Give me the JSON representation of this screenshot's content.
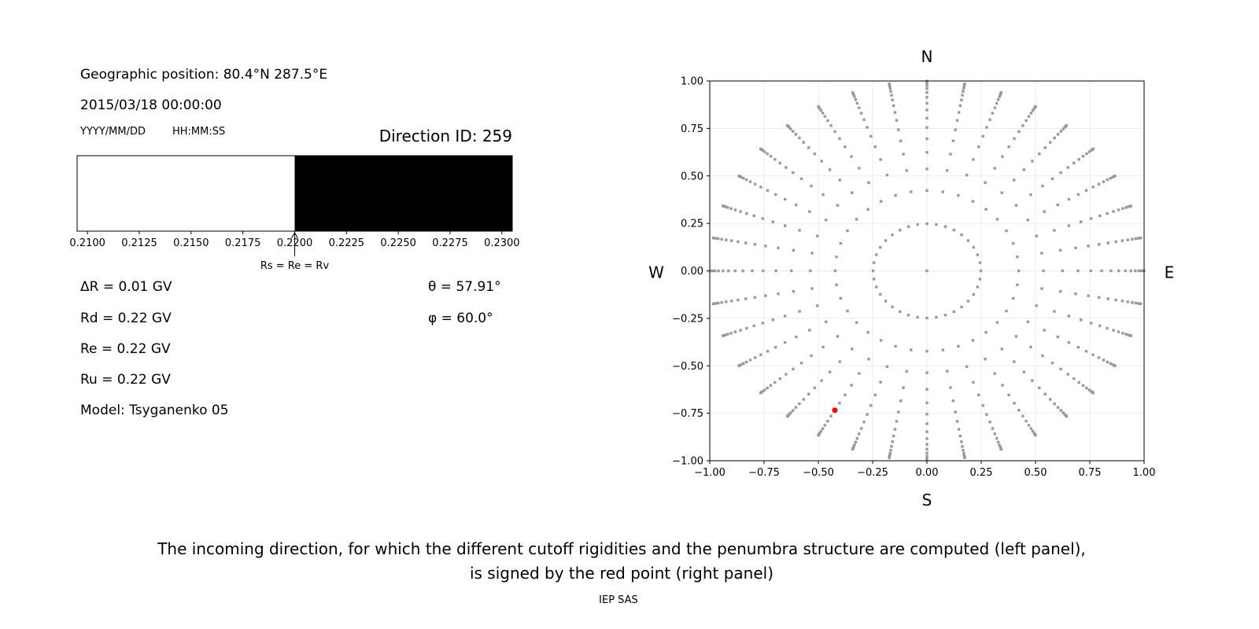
{
  "left_panel": {
    "geo_position": "Geographic position: 80.4°N 287.5°E",
    "datetime": "2015/03/18 00:00:00",
    "date_format": "YYYY/MM/DD",
    "time_format": "HH:MM:SS",
    "direction_id": "Direction ID: 259",
    "delta_r": "ΔR = 0.01 GV",
    "rd": "Rd = 0.22 GV",
    "re": "Re = 0.22 GV",
    "ru": "Ru = 0.22 GV",
    "model": "Model: Tsyganenko 05",
    "theta": "θ = 57.91°",
    "phi": "φ = 60.0°"
  },
  "caption": {
    "line1": "The incoming direction, for which the different cutoff rigidities and the penumbra structure are computed (left panel),",
    "line2": "is signed by the red point (right panel)",
    "credit": "IEP SAS"
  },
  "chart_data": [
    {
      "type": "bar",
      "description_label": "Rs = Re = Rv",
      "xlim": [
        0.2095,
        0.2305
      ],
      "xticks": [
        "0.2100",
        "0.2125",
        "0.2150",
        "0.2175",
        "0.2200",
        "0.2225",
        "0.2250",
        "0.2275",
        "0.2300"
      ],
      "segments": [
        {
          "from": 0.2095,
          "to": 0.22,
          "color": "#ffffff"
        },
        {
          "from": 0.22,
          "to": 0.2305,
          "color": "#000000"
        }
      ],
      "arrow_at": 0.22
    },
    {
      "type": "scatter",
      "xlim": [
        -1,
        1
      ],
      "ylim": [
        -1,
        1
      ],
      "xticks": [
        "−1.00",
        "−0.75",
        "−0.50",
        "−0.25",
        "0.00",
        "0.25",
        "0.50",
        "0.75",
        "1.00"
      ],
      "yticks": [
        "−1.00",
        "−0.75",
        "−0.50",
        "−0.25",
        "0.00",
        "0.25",
        "0.50",
        "0.75",
        "1.00"
      ],
      "grid": true,
      "compass": {
        "north": "N",
        "south": "S",
        "east": "E",
        "west": "W"
      },
      "grid_points": {
        "azimuth_step_deg": 10,
        "cos_zenith": [
          0.96875,
          0.90625,
          0.84375,
          0.78125,
          0.71875,
          0.65625,
          0.59375,
          0.53125,
          0.46875,
          0.40625,
          0.34375,
          0.28125,
          0.21875,
          0.15625,
          0.09375,
          0.03125
        ],
        "include_center": true,
        "color": "#999999"
      },
      "highlight": {
        "x": -0.424,
        "y": -0.734,
        "color": "#ff0000"
      }
    }
  ]
}
